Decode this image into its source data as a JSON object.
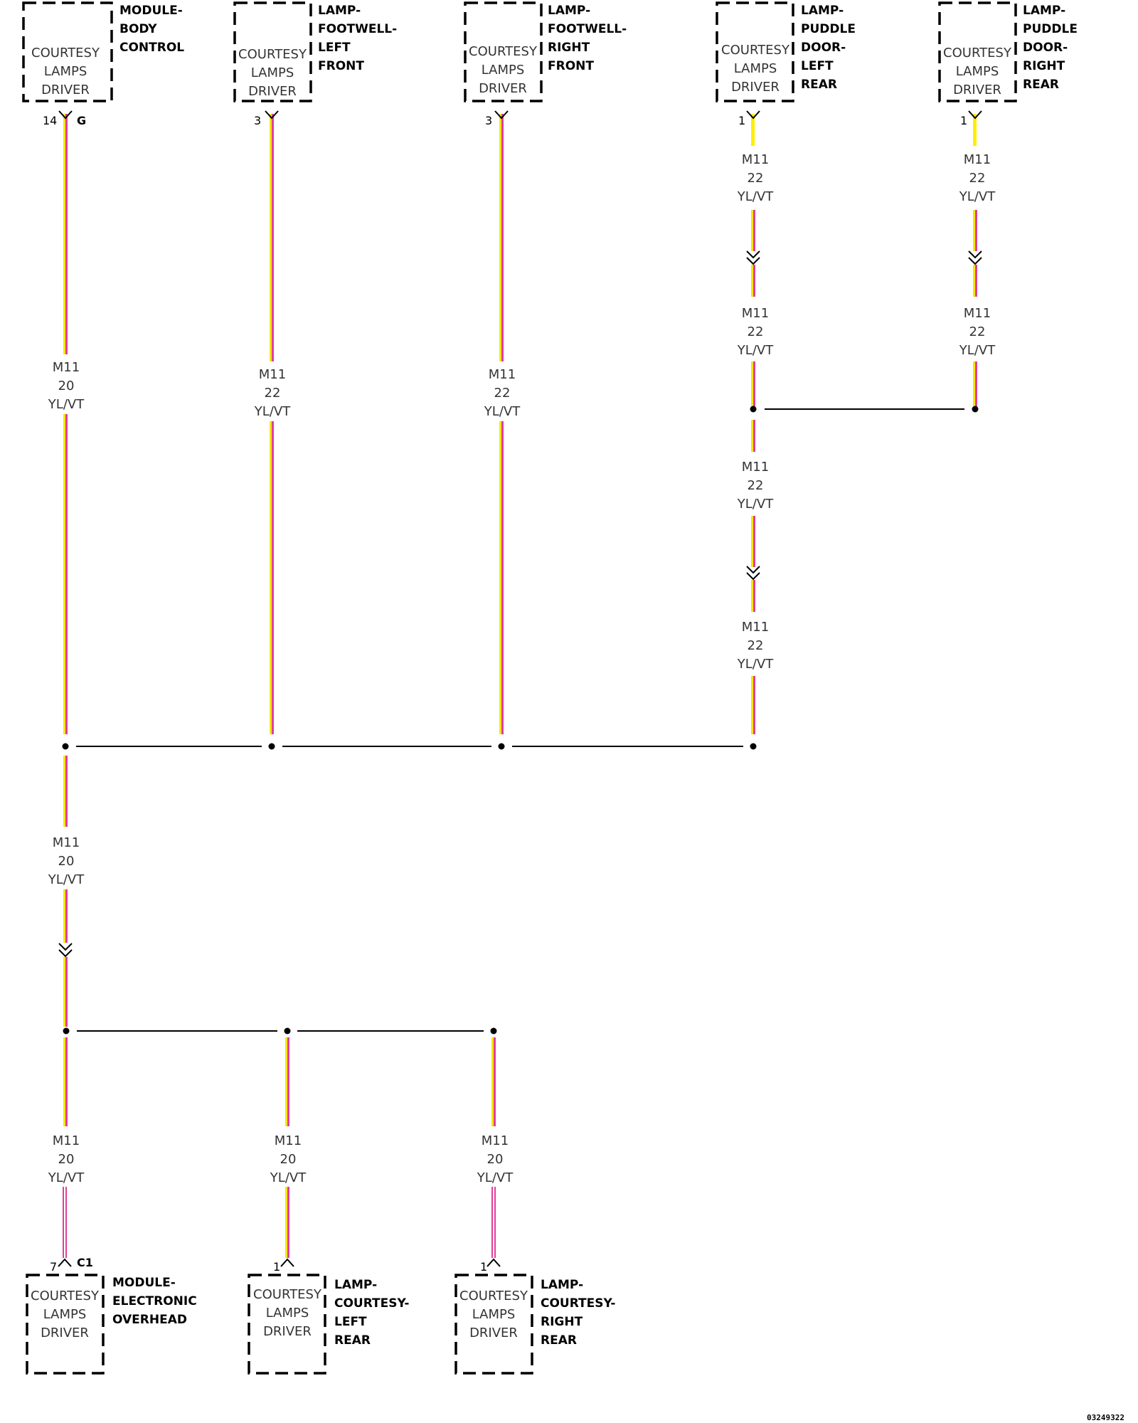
{
  "components": {
    "bcm": {
      "title": [
        "MODULE-",
        "BODY",
        "CONTROL"
      ],
      "inner": [
        "COURTESY",
        "LAMPS",
        "DRIVER"
      ],
      "pin": "14",
      "connector": "G"
    },
    "footwell_lf": {
      "title": [
        "LAMP-",
        "FOOTWELL-",
        "LEFT",
        "FRONT"
      ],
      "inner": [
        "COURTESY",
        "LAMPS",
        "DRIVER"
      ],
      "pin": "3"
    },
    "footwell_rf": {
      "title": [
        "LAMP-",
        "FOOTWELL-",
        "RIGHT",
        "FRONT"
      ],
      "inner": [
        "COURTESY",
        "LAMPS",
        "DRIVER"
      ],
      "pin": "3"
    },
    "puddle_lr": {
      "title": [
        "LAMP-",
        "PUDDLE",
        "DOOR-",
        "LEFT",
        "REAR"
      ],
      "inner": [
        "COURTESY",
        "LAMPS",
        "DRIVER"
      ],
      "pin": "1"
    },
    "puddle_rr": {
      "title": [
        "LAMP-",
        "PUDDLE",
        "DOOR-",
        "RIGHT",
        "REAR"
      ],
      "inner": [
        "COURTESY",
        "LAMPS",
        "DRIVER"
      ],
      "pin": "1"
    },
    "overhead": {
      "title": [
        "MODULE-",
        "ELECTRONIC",
        "OVERHEAD"
      ],
      "inner": [
        "COURTESY",
        "LAMPS",
        "DRIVER"
      ],
      "pin": "7",
      "connector": "C1"
    },
    "courtesy_lr": {
      "title": [
        "LAMP-",
        "COURTESY-",
        "LEFT",
        "REAR"
      ],
      "inner": [
        "COURTESY",
        "LAMPS",
        "DRIVER"
      ],
      "pin": "1"
    },
    "courtesy_rr": {
      "title": [
        "LAMP-",
        "COURTESY-",
        "RIGHT",
        "REAR"
      ],
      "inner": [
        "COURTESY",
        "LAMPS",
        "DRIVER"
      ],
      "pin": "1"
    }
  },
  "wires": {
    "bcm_out": [
      "M11",
      "20",
      "YL/VT"
    ],
    "lf": [
      "M11",
      "22",
      "YL/VT"
    ],
    "rf": [
      "M11",
      "22",
      "YL/VT"
    ],
    "lr_a": [
      "M11",
      "22",
      "YL/VT"
    ],
    "lr_b": [
      "M11",
      "22",
      "YL/VT"
    ],
    "rr_a": [
      "M11",
      "22",
      "YL/VT"
    ],
    "rr_b": [
      "M11",
      "22",
      "YL/VT"
    ],
    "lr_c": [
      "M11",
      "22",
      "YL/VT"
    ],
    "lr_d": [
      "M11",
      "22",
      "YL/VT"
    ],
    "main_down": [
      "M11",
      "20",
      "YL/VT"
    ],
    "overhead": [
      "M11",
      "20",
      "YL/VT"
    ],
    "courtesy_l": [
      "M11",
      "20",
      "YL/VT"
    ],
    "courtesy_r": [
      "M11",
      "20",
      "YL/VT"
    ]
  },
  "wire_colors": {
    "yellow": "#f5e600",
    "violet": "#e0409a",
    "bright_yellow": "#ffee00"
  },
  "doc_number": "03249322"
}
